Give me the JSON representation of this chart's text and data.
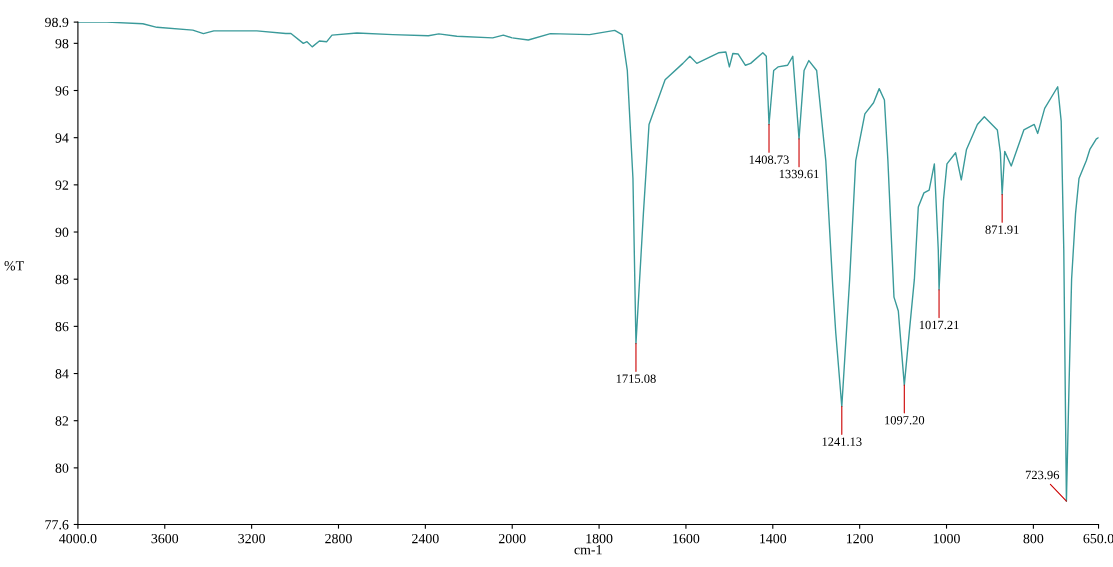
{
  "chart_data": [
    {
      "type": "line",
      "ylabel": "%T",
      "xlim": [
        4000,
        2000
      ],
      "xticks": [
        {
          "value": 4000,
          "label": "4000.0"
        },
        3600,
        3200,
        2800,
        2400,
        2000
      ],
      "ylim": [
        77.6,
        98.9
      ],
      "yticks": [
        77.6,
        80,
        82,
        84,
        86,
        88,
        90,
        92,
        94,
        96,
        98,
        98.9
      ],
      "grid": false,
      "marker": "none",
      "line_style": "solid",
      "series": [
        {
          "color": "#3a9a9a",
          "x": [
            4000,
            3866,
            3701,
            3636,
            3471,
            3422,
            3374,
            3176,
            3043,
            3019,
            2962,
            2945,
            2921,
            2888,
            2854,
            2830,
            2715,
            2550,
            2386,
            2338,
            2255,
            2090,
            2041,
            2000
          ],
          "values": [
            98.9,
            98.9,
            98.83,
            98.68,
            98.56,
            98.41,
            98.53,
            98.53,
            98.42,
            98.42,
            98.0,
            98.07,
            97.85,
            98.1,
            98.07,
            98.35,
            98.44,
            98.37,
            98.32,
            98.4,
            98.3,
            98.23,
            98.35,
            98.23
          ]
        }
      ]
    },
    {
      "type": "line",
      "xlabel": "cm-1",
      "xlim": [
        2000,
        650
      ],
      "xticks": [
        1800,
        1600,
        1400,
        1200,
        1000,
        800,
        {
          "value": 650,
          "label": "650.0"
        }
      ],
      "ylim": [
        77.6,
        98.9
      ],
      "tick_labels": "x",
      "grid": false,
      "marker": "none",
      "line_style": "solid",
      "series": [
        {
          "color": "#3a9a9a",
          "x": [
            2000,
            1963,
            1912,
            1822,
            1764,
            1747,
            1735,
            1722,
            1715.08,
            1698,
            1685,
            1648,
            1607,
            1591,
            1575,
            1525,
            1508,
            1500,
            1492,
            1480,
            1463,
            1451,
            1423,
            1415,
            1408.73,
            1398,
            1388,
            1366,
            1354,
            1339.61,
            1328,
            1317,
            1299,
            1278,
            1262,
            1255,
            1241.13,
            1223,
            1209,
            1188,
            1168,
            1155,
            1143,
            1135,
            1121,
            1111,
            1097.2,
            1086,
            1074,
            1065,
            1052,
            1040,
            1028,
            1019,
            1017.21,
            1007,
            999,
            979,
            966,
            954,
            929,
            913,
            883,
            876,
            871.91,
            866,
            851,
            822,
            798,
            790,
            774,
            744,
            736,
            730,
            723.96,
            718,
            712,
            703,
            695,
            678,
            670,
            655,
            650
          ],
          "values": [
            98.23,
            98.14,
            98.41,
            98.37,
            98.55,
            98.37,
            96.85,
            92.27,
            85.27,
            90.77,
            94.56,
            96.46,
            97.15,
            97.45,
            97.15,
            97.6,
            97.63,
            97.0,
            97.57,
            97.55,
            97.07,
            97.15,
            97.6,
            97.45,
            94.56,
            96.85,
            97.0,
            97.07,
            97.45,
            93.95,
            96.85,
            97.27,
            96.85,
            93.03,
            87.71,
            85.72,
            82.6,
            88.0,
            93.03,
            95.01,
            95.48,
            96.08,
            95.6,
            93.03,
            87.24,
            86.65,
            83.51,
            85.7,
            88.0,
            91.06,
            91.66,
            91.78,
            92.89,
            89.24,
            87.55,
            91.36,
            92.89,
            93.36,
            92.21,
            93.5,
            94.56,
            94.89,
            94.33,
            93.36,
            91.59,
            93.42,
            92.8,
            94.33,
            94.56,
            94.18,
            95.24,
            96.16,
            94.7,
            89.24,
            78.59,
            83.44,
            88.0,
            90.77,
            92.27,
            93.03,
            93.5,
            93.95,
            94.0
          ]
        }
      ],
      "annotations": [
        {
          "text": "1715.08",
          "x": 1715.08,
          "y": 85.27
        },
        {
          "text": "1408.73",
          "x": 1408.73,
          "y": 94.56
        },
        {
          "text": "1339.61",
          "x": 1339.61,
          "y": 93.95
        },
        {
          "text": "1241.13",
          "x": 1241.13,
          "y": 82.6
        },
        {
          "text": "1097.20",
          "x": 1097.2,
          "y": 83.51
        },
        {
          "text": "1017.21",
          "x": 1017.21,
          "y": 87.55
        },
        {
          "text": "871.91",
          "x": 871.91,
          "y": 91.59
        },
        {
          "text": "723.96",
          "x": 723.96,
          "y": 78.59
        }
      ]
    }
  ]
}
